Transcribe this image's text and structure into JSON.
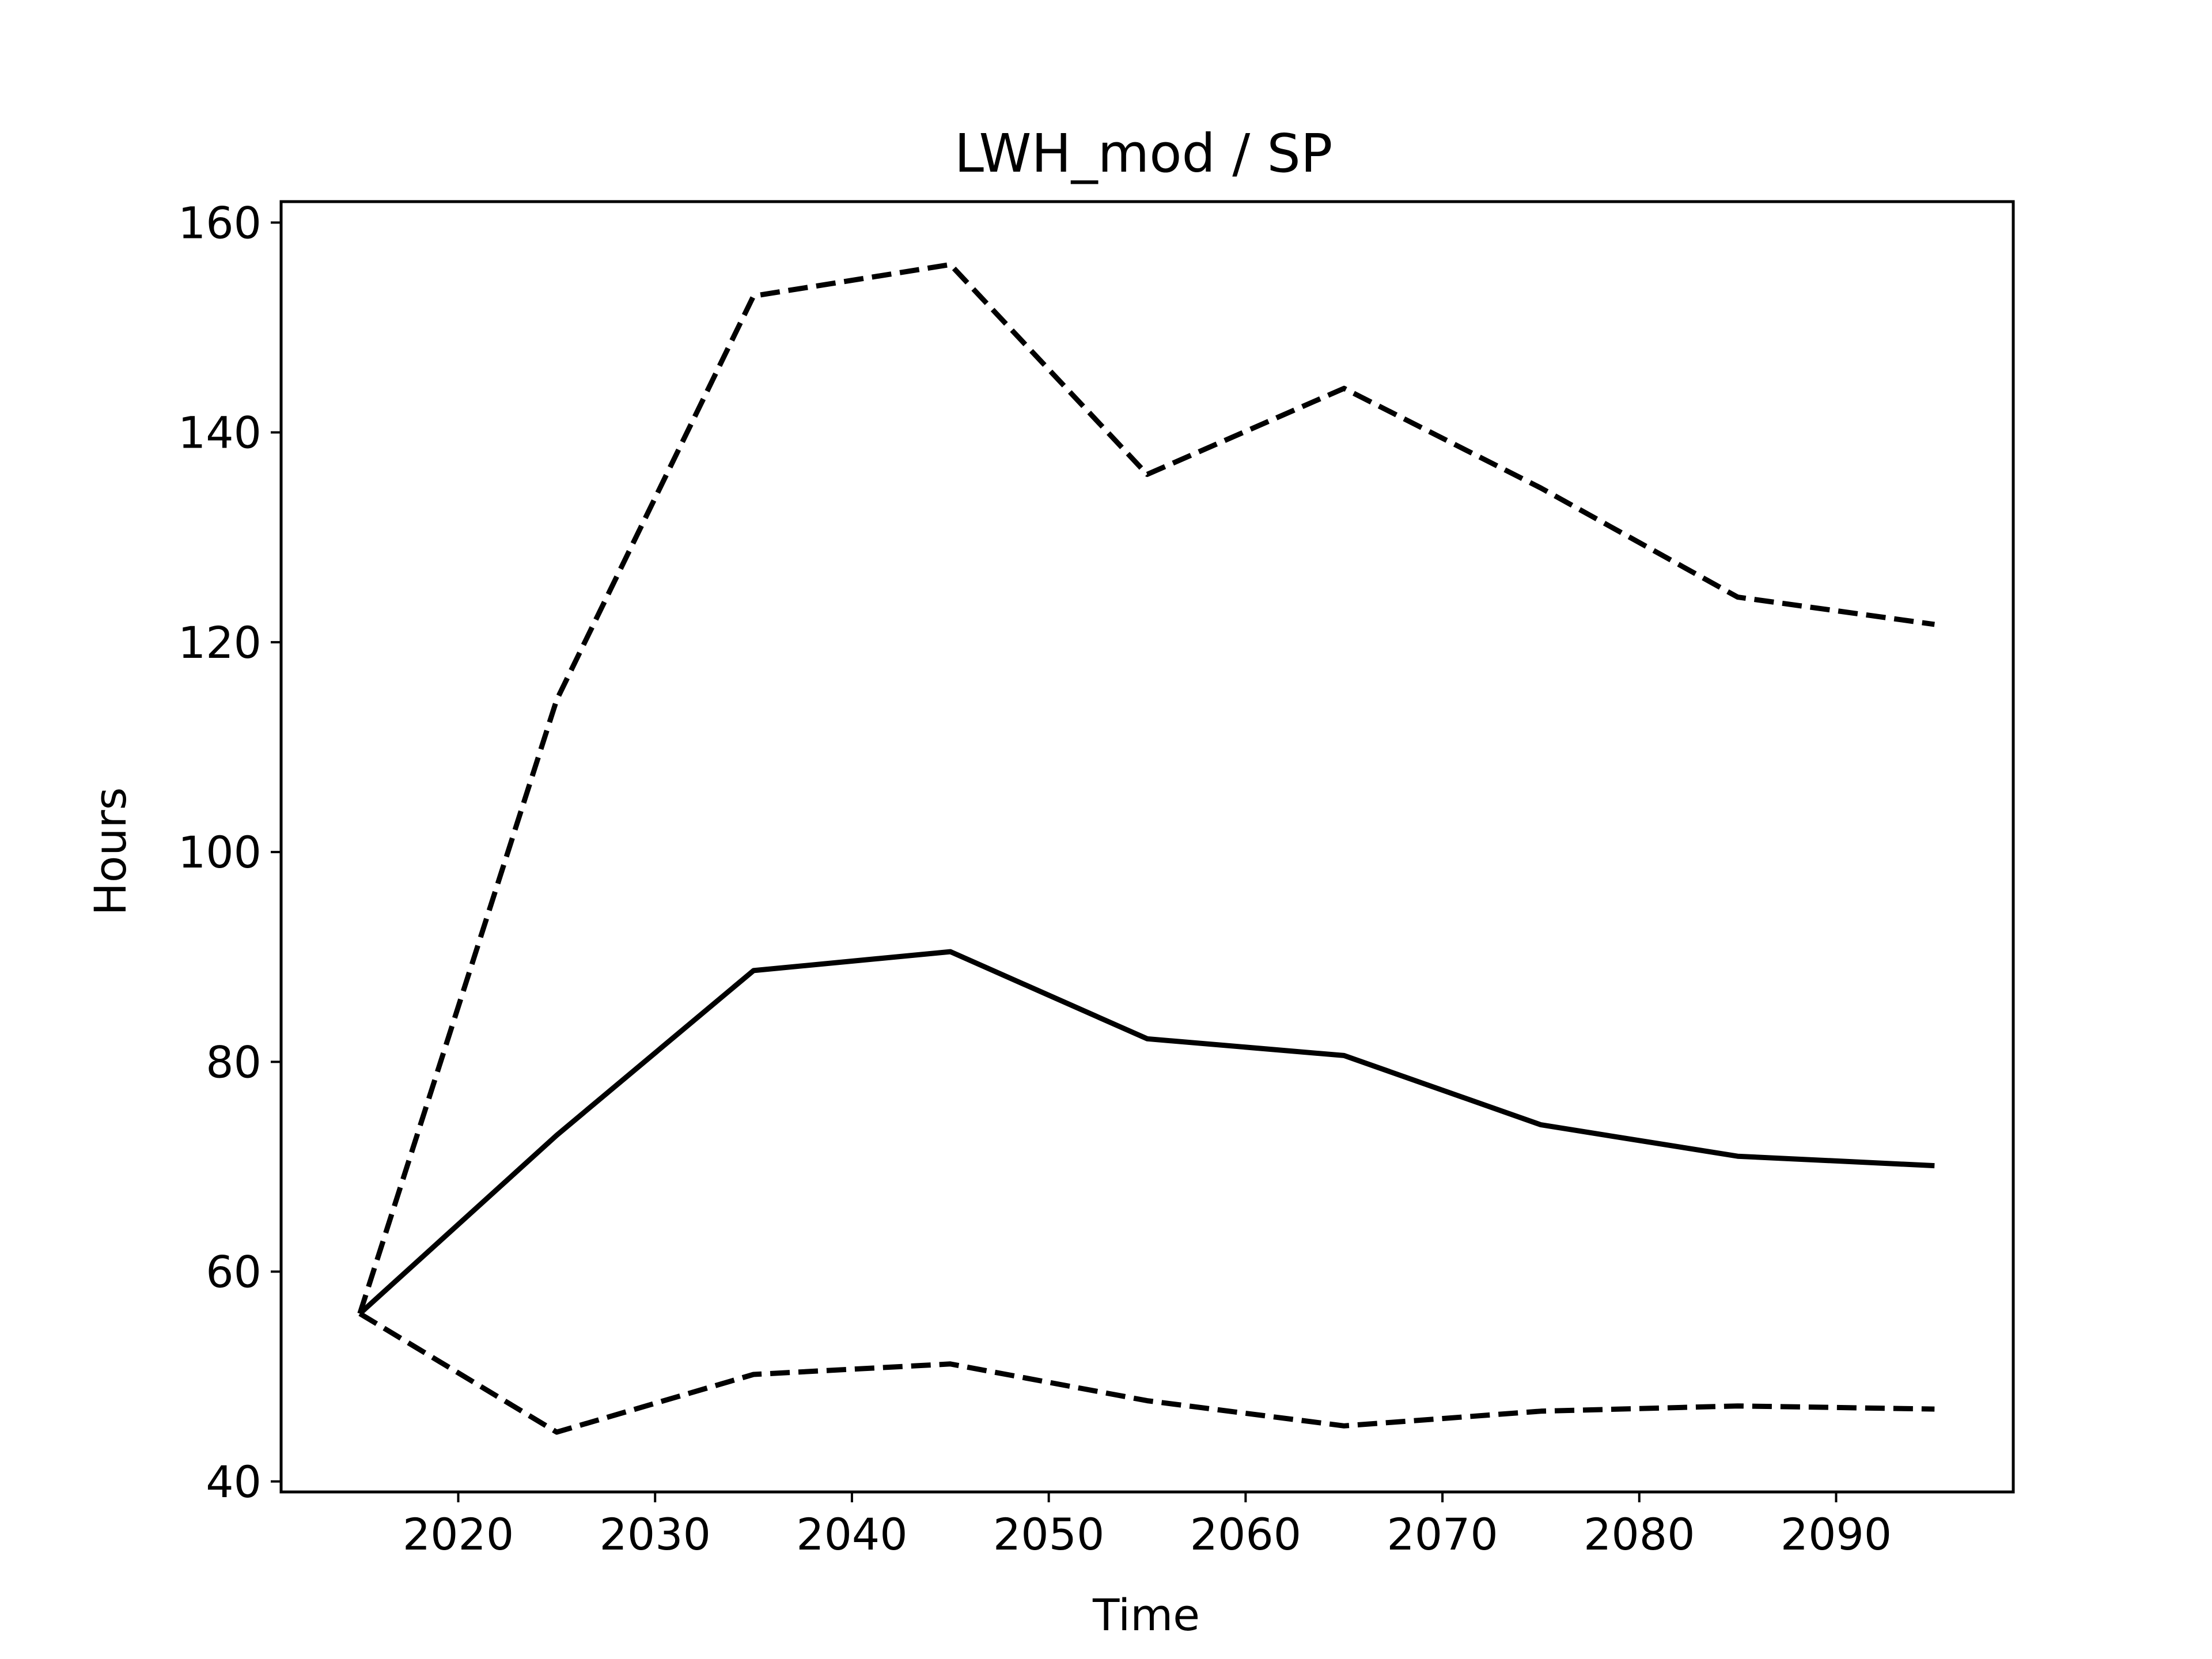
{
  "chart_data": {
    "type": "line",
    "title": "LWH_mod / SP",
    "xlabel": "Time",
    "ylabel": "Hours",
    "xlim": [
      2011,
      2099
    ],
    "ylim": [
      39,
      162
    ],
    "xticks": [
      2020,
      2030,
      2040,
      2050,
      2060,
      2070,
      2080,
      2090
    ],
    "yticks": [
      40,
      60,
      80,
      100,
      120,
      140,
      160
    ],
    "x": [
      2015,
      2025,
      2035,
      2045,
      2055,
      2065,
      2075,
      2085,
      2095
    ],
    "series": [
      {
        "style": "dashed",
        "color": "#000000",
        "values": [
          56,
          114.5,
          153,
          156,
          136,
          144.2,
          134.7,
          124.3,
          121.7
        ]
      },
      {
        "style": "solid",
        "color": "#000000",
        "values": [
          56,
          73,
          88.7,
          90.5,
          82.2,
          80.6,
          74,
          71,
          70.1
        ]
      },
      {
        "style": "dashed",
        "color": "#000000",
        "values": [
          56,
          44.7,
          50.2,
          51.2,
          47.7,
          45.3,
          46.7,
          47.2,
          46.9
        ]
      }
    ],
    "grid": false,
    "legend": null
  }
}
